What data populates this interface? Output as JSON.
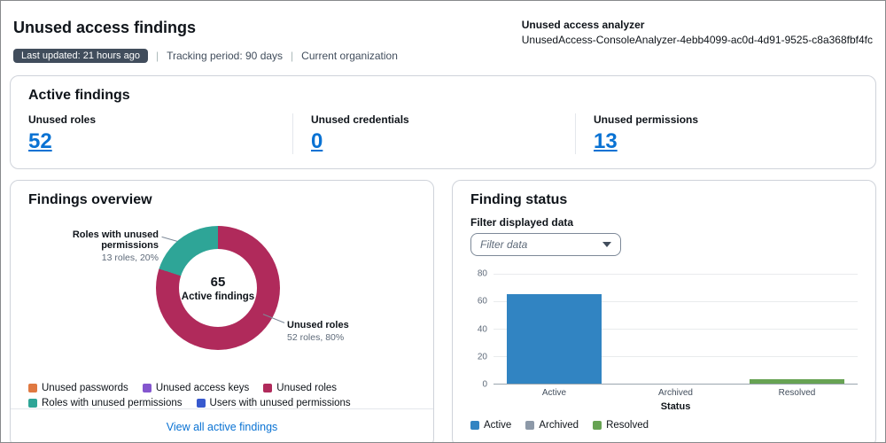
{
  "header": {
    "title": "Unused access findings",
    "last_updated_badge": "Last updated: 21 hours ago",
    "separator": "|",
    "tracking_period": "Tracking period: 90 days",
    "current_organization": "Current organization",
    "analyzer_label": "Unused access analyzer",
    "analyzer_name": "UnusedAccess-ConsoleAnalyzer-4ebb4099-ac0d-4d91-9525-c8a368fbf4fc"
  },
  "active_findings": {
    "title": "Active findings",
    "metrics": [
      {
        "label": "Unused roles",
        "value": "52"
      },
      {
        "label": "Unused credentials",
        "value": "0"
      },
      {
        "label": "Unused permissions",
        "value": "13"
      }
    ]
  },
  "findings_overview": {
    "title": "Findings overview",
    "center": {
      "value": "65",
      "label": "Active findings"
    },
    "segments": [
      {
        "label": "Unused roles",
        "value": 52,
        "pct": 80,
        "color": "#b02a5b"
      },
      {
        "label": "Roles with unused permissions",
        "value": 13,
        "pct": 20,
        "color": "#2ea597"
      }
    ],
    "callouts": [
      {
        "label": "Roles with unused permissions",
        "detail": "13 roles, 20%"
      },
      {
        "label": "Unused roles",
        "detail": "52 roles, 80%"
      }
    ],
    "legend": [
      {
        "label": "Unused passwords",
        "color": "#e07941"
      },
      {
        "label": "Unused access keys",
        "color": "#8456ce"
      },
      {
        "label": "Unused roles",
        "color": "#b02a5b"
      },
      {
        "label": "Roles with unused permissions",
        "color": "#2ea597"
      },
      {
        "label": "Users with unused permissions",
        "color": "#3759ce"
      }
    ],
    "view_all_link": "View all active findings"
  },
  "finding_status": {
    "title": "Finding status",
    "filter_label": "Filter displayed data",
    "filter_placeholder": "Filter data",
    "ymax": 80,
    "yticks": [
      "80",
      "60",
      "40",
      "20",
      "0"
    ],
    "bars": [
      {
        "category": "Active",
        "value": 65,
        "color": "#3184c2"
      },
      {
        "category": "Archived",
        "value": 0,
        "color": "#8d99a8"
      },
      {
        "category": "Resolved",
        "value": 3,
        "color": "#67a353"
      }
    ],
    "xlabel": "Status",
    "legend": [
      {
        "label": "Active",
        "color": "#3184c2"
      },
      {
        "label": "Archived",
        "color": "#8d99a8"
      },
      {
        "label": "Resolved",
        "color": "#67a353"
      }
    ]
  },
  "chart_data": [
    {
      "type": "pie",
      "title": "Findings overview",
      "labels": [
        "Unused roles",
        "Roles with unused permissions"
      ],
      "values": [
        52,
        13
      ],
      "percents": [
        80,
        20
      ],
      "total": 65,
      "center_label": "Active findings",
      "colors": [
        "#b02a5b",
        "#2ea597"
      ],
      "legend_position": "bottom"
    },
    {
      "type": "bar",
      "title": "Finding status",
      "categories": [
        "Active",
        "Archived",
        "Resolved"
      ],
      "values": [
        65,
        0,
        3
      ],
      "colors": [
        "#3184c2",
        "#8d99a8",
        "#67a353"
      ],
      "xlabel": "Status",
      "ylabel": "",
      "ylim": [
        0,
        80
      ],
      "yticks": [
        0,
        20,
        40,
        60,
        80
      ],
      "grid": true,
      "legend_position": "bottom"
    }
  ]
}
